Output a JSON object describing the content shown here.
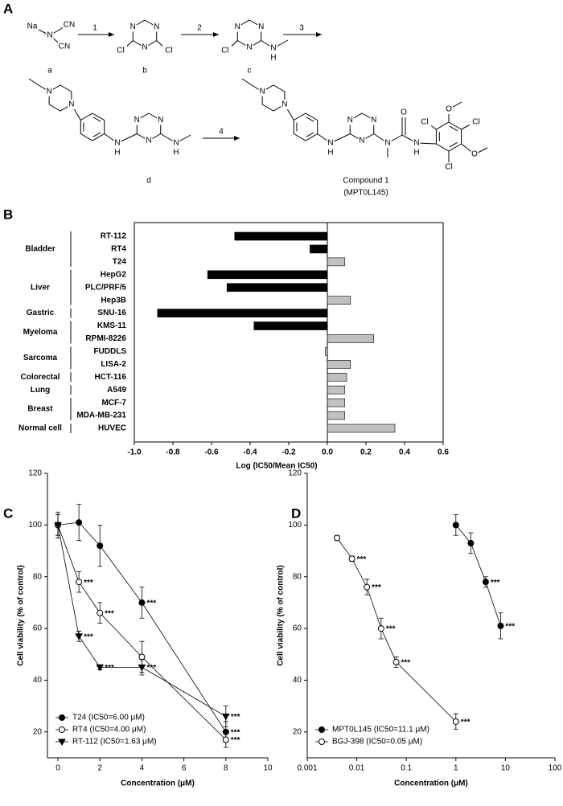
{
  "panel_labels": [
    "A",
    "B",
    "C",
    "D"
  ],
  "scheme": {
    "steps": [
      "1",
      "2",
      "3",
      "4"
    ],
    "compounds": [
      {
        "label": "a",
        "atoms": [
          "Na",
          "N",
          "CN",
          "CN"
        ]
      },
      {
        "label": "b",
        "atoms": [
          "N",
          "N",
          "N",
          "Cl",
          "Cl"
        ]
      },
      {
        "label": "c",
        "atoms": [
          "N",
          "N",
          "N",
          "Cl",
          "N",
          "H"
        ]
      },
      {
        "label": "d",
        "atoms": [
          "N",
          "N",
          "N",
          "H",
          "N",
          "N",
          "N",
          "N",
          "H"
        ]
      },
      {
        "label": "Compound 1",
        "sublabel": "(MPT0L145)",
        "atoms": [
          "N",
          "N",
          "N",
          "H",
          "N",
          "N",
          "N",
          "N",
          "O",
          "N",
          "H",
          "Cl",
          "O",
          "Cl",
          "O",
          "Cl"
        ]
      }
    ]
  },
  "chart_data": [
    {
      "type": "bar",
      "orientation": "horizontal",
      "categories": [
        "RT-112",
        "RT4",
        "T24",
        "HepG2",
        "PLC/PRF/5",
        "Hep3B",
        "SNU-16",
        "KMS-11",
        "RPMI-8226",
        "FUDDLS",
        "LISA-2",
        "HCT-116",
        "A549",
        "MCF-7",
        "MDA-MB-231",
        "HUVEC"
      ],
      "values": [
        -0.48,
        -0.09,
        0.09,
        -0.62,
        -0.52,
        0.12,
        -0.88,
        -0.38,
        0.24,
        -0.01,
        0.12,
        0.1,
        0.09,
        0.09,
        0.09,
        0.35
      ],
      "colors": [
        "#000000",
        "#000000",
        "#c0c0c0",
        "#000000",
        "#000000",
        "#c0c0c0",
        "#000000",
        "#000000",
        "#c0c0c0",
        "#c0c0c0",
        "#c0c0c0",
        "#c0c0c0",
        "#c0c0c0",
        "#c0c0c0",
        "#c0c0c0",
        "#c0c0c0"
      ],
      "groups": [
        {
          "label": "Bladder",
          "categories": [
            "RT-112",
            "RT4",
            "T24"
          ]
        },
        {
          "label": "Liver",
          "categories": [
            "HepG2",
            "PLC/PRF/5",
            "Hep3B"
          ]
        },
        {
          "label": "Gastric",
          "categories": [
            "SNU-16"
          ]
        },
        {
          "label": "Myeloma",
          "categories": [
            "KMS-11",
            "RPMI-8226"
          ]
        },
        {
          "label": "Sarcoma",
          "categories": [
            "FUDDLS",
            "LISA-2"
          ]
        },
        {
          "label": "Colorectal",
          "categories": [
            "HCT-116"
          ]
        },
        {
          "label": "Lung",
          "categories": [
            "A549"
          ]
        },
        {
          "label": "Breast",
          "categories": [
            "MCF-7",
            "MDA-MB-231"
          ]
        },
        {
          "label": "Normal cell",
          "categories": [
            "HUVEC"
          ]
        }
      ],
      "x_label": "Log (IC50/Mean IC50)",
      "xlim": [
        -1,
        0.6
      ],
      "xticks": [
        {
          "value": -1,
          "label": "-1.0"
        },
        -0.8,
        -0.6,
        -0.4,
        -0.2,
        {
          "value": 0,
          "label": "0.0"
        },
        0.2,
        0.4,
        0.6
      ]
    },
    {
      "type": "line",
      "x": [
        0,
        1,
        2,
        4,
        8
      ],
      "series": [
        {
          "name": "T24 (IC50=6.00 μM)",
          "marker": "circle",
          "color": "#000000",
          "values": [
            100,
            101,
            92,
            70,
            20
          ],
          "errors": [
            4,
            7,
            8,
            6,
            4
          ],
          "significance": [
            null,
            null,
            null,
            "***",
            "***"
          ]
        },
        {
          "name": "RT4 (IC50=4.00 μM)",
          "marker": "circle-open",
          "color": "#000000",
          "values": [
            100,
            78,
            66,
            49,
            17
          ],
          "errors": [
            4,
            4,
            4,
            6,
            3
          ],
          "significance": [
            null,
            "***",
            "***",
            null,
            "***"
          ]
        },
        {
          "name": "RT-112 (IC50=1.63 μM)",
          "marker": "triangle-down",
          "color": "#000000",
          "values": [
            100,
            57,
            45,
            45,
            26
          ],
          "errors": [
            5,
            2,
            1,
            3,
            4
          ],
          "significance": [
            null,
            "***",
            "***",
            "***",
            "***"
          ]
        }
      ],
      "xlim": [
        -0.5,
        10
      ],
      "xticks": [
        0,
        2,
        4,
        6,
        8,
        10
      ],
      "ylim": [
        10,
        120
      ],
      "yticks": [
        20,
        40,
        60,
        80,
        100,
        120
      ],
      "x_label": "Concentration (μM)",
      "y_label": "Cell viability (% of control)",
      "legend": "lower left"
    },
    {
      "type": "line",
      "xscale": "log",
      "series": [
        {
          "name": "MPT0L145 (IC50=11.1 μM)",
          "marker": "circle",
          "color": "#000000",
          "x": [
            1,
            2,
            4,
            8
          ],
          "values": [
            100,
            93,
            78,
            61
          ],
          "errors": [
            4,
            4,
            2,
            5
          ],
          "significance": [
            null,
            null,
            "***",
            "***"
          ]
        },
        {
          "name": "BGJ-398 (IC50=0.05 μM)",
          "marker": "circle-open",
          "color": "#000000",
          "x": [
            0.004,
            0.008,
            0.016,
            0.031,
            0.0625,
            1
          ],
          "values": [
            95,
            87,
            76,
            60,
            47,
            24
          ],
          "errors": [
            1,
            1,
            3,
            4,
            2,
            3
          ],
          "significance": [
            null,
            "***",
            "***",
            "***",
            "***",
            "***"
          ]
        }
      ],
      "xlim": [
        0.001,
        100
      ],
      "xticks": [
        0.001,
        0.01,
        0.1,
        1,
        10,
        100
      ],
      "ylim": [
        10,
        120
      ],
      "yticks": [
        20,
        40,
        60,
        80,
        100,
        120
      ],
      "x_label": "Concentration (μM)",
      "y_label": "Cell viability (% of control)",
      "legend": "lower left"
    }
  ]
}
